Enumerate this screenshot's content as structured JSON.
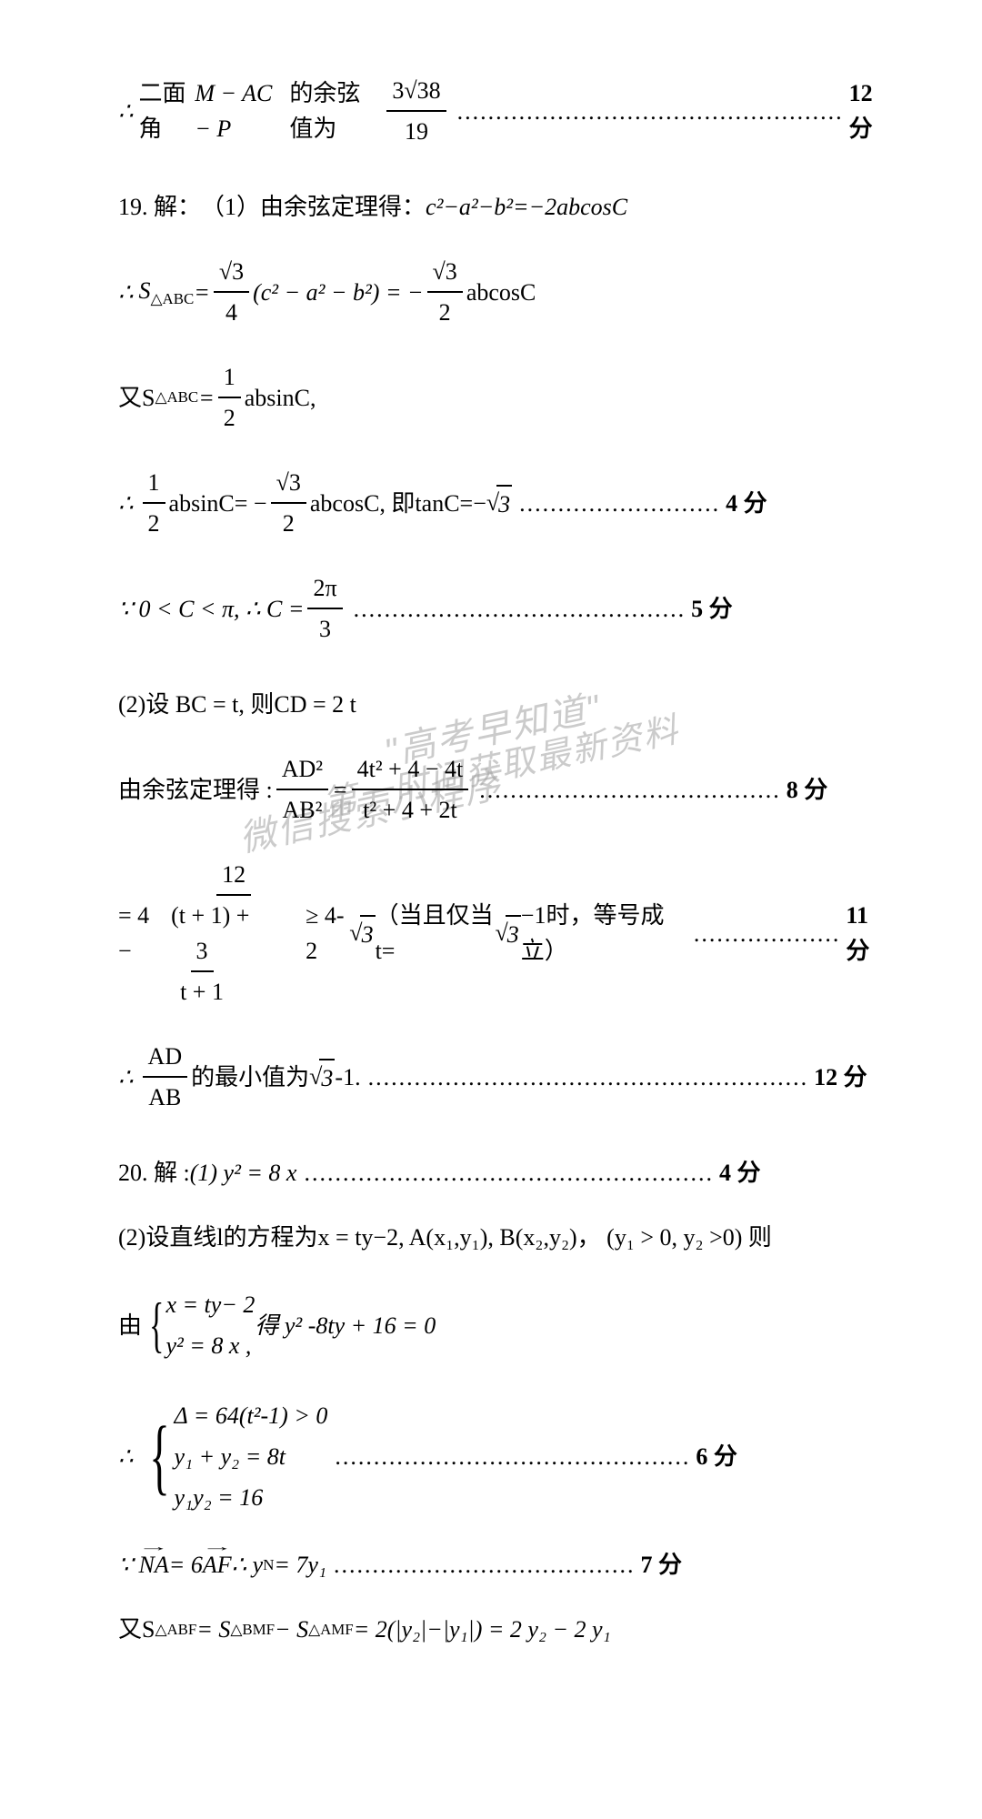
{
  "colors": {
    "text": "#000000",
    "bg": "#ffffff",
    "watermark": "rgba(160,160,160,0.55)"
  },
  "fonts": {
    "body": "SimSun / Times New Roman",
    "size_pt": 20
  },
  "l1": {
    "pre": "二面角",
    "expr": "M − AC − P",
    "mid": "的余弦值为",
    "num": "3√38",
    "den": "19",
    "score": "12 分"
  },
  "l2": {
    "qnum": "19. 解：",
    "part": "（1）由余弦定理得：",
    "expr": "c²−a²−b²=−2abcosC"
  },
  "l3": {
    "pre": "S",
    "sub": "△ABC",
    "eq": " = ",
    "f1n": "√3",
    "f1d": "4",
    "mid": "(c² − a² − b²) = −",
    "f2n": "√3",
    "f2d": "2",
    "tail": "abcosC"
  },
  "l4": {
    "pre": "又S",
    "sub": "△ABC",
    "eq": " = ",
    "fn": "1",
    "fd": "2",
    "tail": "absinC,"
  },
  "l5": {
    "f1n": "1",
    "f1d": "2",
    "m1": "absinC= −",
    "f2n": "√3",
    "f2d": "2",
    "m2": "abcosC, 即tanC=−",
    "sq": "3",
    "score": "4 分"
  },
  "l6": {
    "pre": "0 < C < π, ∴ C = ",
    "fn": "2π",
    "fd": "3",
    "score": "5 分"
  },
  "l7": {
    "txt": "(2)设 BC = t, 则CD = 2 t"
  },
  "l8": {
    "pre": "由余弦定理得 : ",
    "f1n": "AD²",
    "f1d": "AB²",
    "eq": " = ",
    "f2n": "4t² + 4 − 4t",
    "f2d": "t² + 4 + 2t",
    "score": "8 分"
  },
  "l9": {
    "pre": "= 4 − ",
    "bn": "12",
    "bd1": "(t + 1) + ",
    "bd2n": "3",
    "bd2d": "t + 1",
    "mid": " ≥ 4-2",
    "sq": "3",
    "paren": "（当且仅当t=",
    "sq2": "3",
    "paren2": "−1时，等号成立）",
    "score": "11 分"
  },
  "l10": {
    "f1n": "AD",
    "f1d": "AB",
    "mid": "的最小值为",
    "sq": "3",
    "tail": "-1.",
    "score": "12 分"
  },
  "l11": {
    "qnum": "20. 解 :",
    "part": "(1) y² = 8 x",
    "score": "4 分"
  },
  "l12": {
    "txt": "(2)设直线l的方程为x = ty−2, A(x₁,y₁), B(x₂,y₂)， (y₁ > 0, y₂ >0) 则"
  },
  "l13": {
    "pre": "由",
    "r1": "x = ty− 2",
    "r2": "y² = 8 x ,",
    "mid": "得 y² -8ty + 16 = 0"
  },
  "l14": {
    "r1": "Δ = 64(t²-1) > 0",
    "r2": "y₁ + y₂ = 8t",
    "r3": "y₁y₂ = 16",
    "score": "6 分"
  },
  "l15": {
    "v1": "NA",
    "mid": " = 6",
    "v2": "AF",
    "mid2": " ∴ y",
    "sub": "N",
    "tail": " = 7y₁",
    "score": "7 分"
  },
  "l16": {
    "pre": "又S",
    "s1": "△ABF",
    "eq": " = S",
    "s2": "△BMF",
    "m2": " − S",
    "s3": "△AMF",
    "m3": " = 2(|y₂|−|y₁|) = 2 y₂ − 2 y₁"
  },
  "watermarks": {
    "a": "\"高考早知道\"",
    "b": "微信搜索小程序",
    "c": "第一时间获取最新资料"
  }
}
